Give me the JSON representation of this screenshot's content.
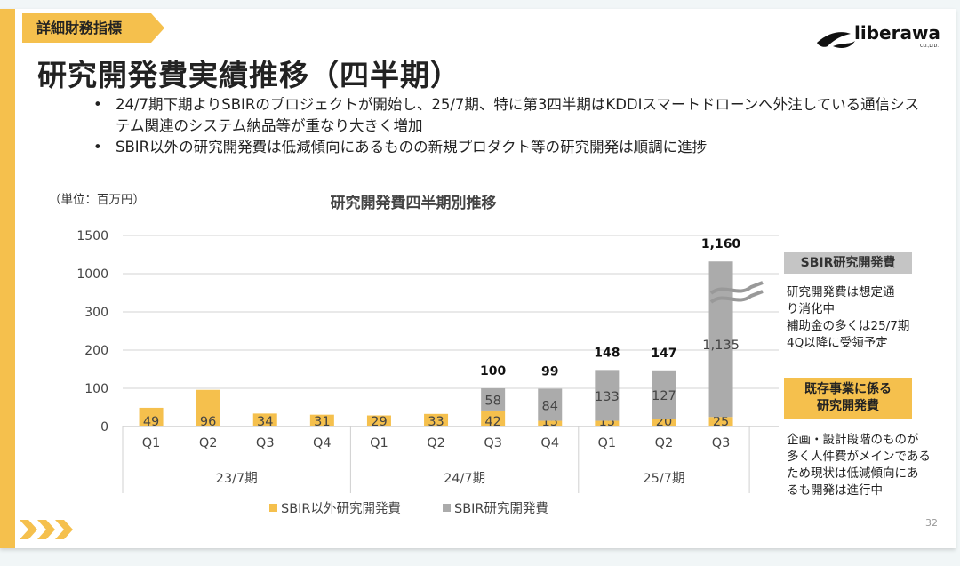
{
  "header": {
    "tag": "詳細財務指標",
    "title": "研究開発費実績推移（四半期）",
    "logo": "Liberaware CO.,LTD."
  },
  "bullets": [
    "24/7期下期よりSBIRのプロジェクトが開始し、25/7期、特に第3四半期はKDDIスマートドローンへ外注している通信システム関連のシステム納品等が重なり大きく増加",
    "SBIR以外の研究開発費は低減傾向にあるものの新規プロダクト等の研究開発は順調に進捗"
  ],
  "unit": "（単位：百万円）",
  "chart_data": {
    "type": "bar",
    "stacked": true,
    "title": "研究開発費四半期別推移",
    "categories": [
      "Q1",
      "Q2",
      "Q3",
      "Q4",
      "Q1",
      "Q2",
      "Q3",
      "Q4",
      "Q1",
      "Q2",
      "Q3"
    ],
    "groups": [
      {
        "label": "23/7期",
        "count": 4
      },
      {
        "label": "24/7期",
        "count": 4
      },
      {
        "label": "25/7期",
        "count": 3
      }
    ],
    "series": [
      {
        "name": "SBIR以外研究開発費",
        "color": "#f5c04d",
        "values": [
          49,
          96,
          34,
          31,
          29,
          33,
          42,
          15,
          15,
          20,
          25
        ]
      },
      {
        "name": "SBIR研究開発費",
        "color": "#ababab",
        "values": [
          0,
          0,
          0,
          0,
          0,
          0,
          58,
          84,
          133,
          127,
          1135
        ]
      }
    ],
    "totals": [
      null,
      null,
      null,
      null,
      null,
      null,
      "100",
      "99",
      "148",
      "147",
      "1,160"
    ],
    "segment_labels": [
      [
        "49",
        "96",
        "34",
        "31",
        "29",
        "33",
        "42",
        "15",
        "15",
        "20",
        "25"
      ],
      [
        null,
        null,
        null,
        null,
        null,
        null,
        "58",
        "84",
        "133",
        "127",
        "1,135"
      ]
    ],
    "yticks": [
      "0",
      "100",
      "200",
      "300",
      "1000",
      "1500"
    ],
    "ytick_values": [
      0,
      100,
      200,
      300,
      1000,
      1500
    ],
    "axis_break": "300-1000",
    "legend": "bottom"
  },
  "side": {
    "sbir_box": "SBIR研究開発費",
    "sbir_note": [
      "研究開発費は想定通",
      "り消化中",
      "補助金の多くは25/7期",
      "4Q以降に受領予定"
    ],
    "existing_box": [
      "既存事業に係る",
      "研究開発費"
    ],
    "existing_note": [
      "企画・設計段階のものが",
      "多く人件費がメインである",
      "ため現状は低減傾向にあ",
      "るも開発は進行中"
    ]
  },
  "page_number": "32"
}
